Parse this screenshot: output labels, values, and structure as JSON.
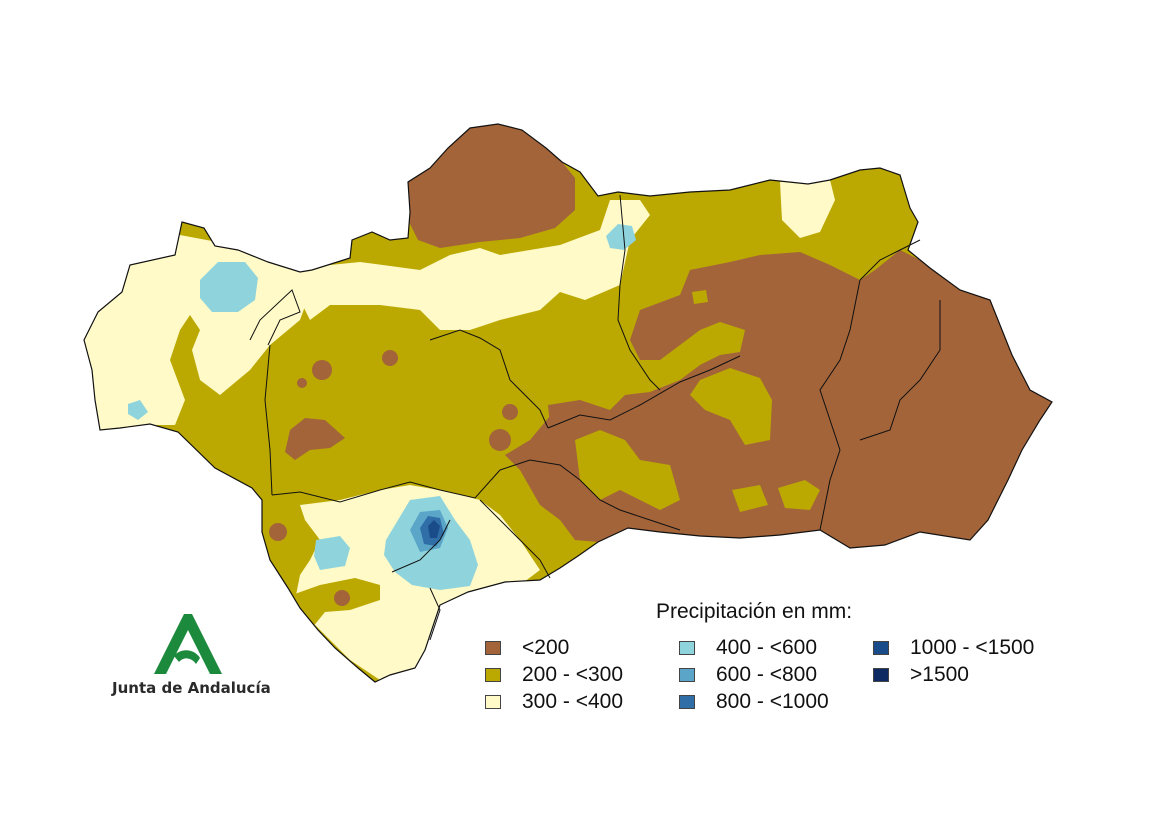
{
  "legend": {
    "title": "Precipitación en mm:",
    "items": [
      {
        "label": "<200",
        "color": "#a3643a"
      },
      {
        "label": "200 - <300",
        "color": "#bba800"
      },
      {
        "label": "300 - <400",
        "color": "#fffac8"
      },
      {
        "label": "400 - <600",
        "color": "#8fd4dc"
      },
      {
        "label": "600 - <800",
        "color": "#5aa5c8"
      },
      {
        "label": "800 - <1000",
        "color": "#2f6ea6"
      },
      {
        "label": "1000 - <1500",
        "color": "#1b4c8a"
      },
      {
        "label": ">1500",
        "color": "#0e2a63"
      }
    ]
  },
  "logo": {
    "text": "Junta de Andalucía",
    "color": "#1b8a3d"
  },
  "map": {
    "region": "Andalucía",
    "border_color": "#111111"
  }
}
